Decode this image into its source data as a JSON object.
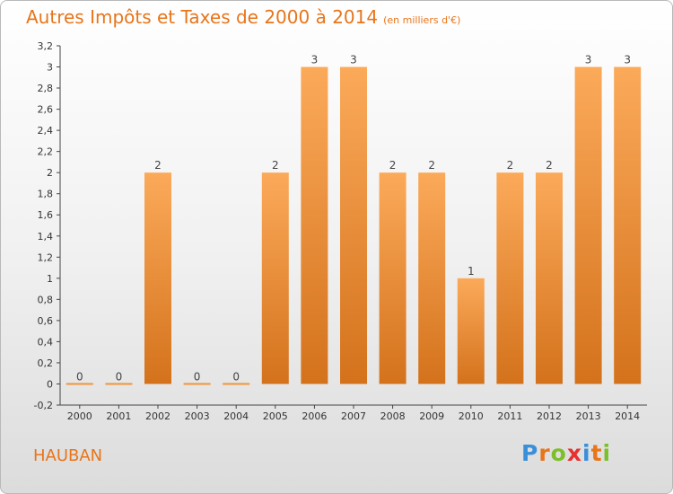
{
  "title": "Autres Impôts et Taxes de 2000 à 2014",
  "unit": "(en milliers d'€)",
  "commune": "HAUBAN",
  "logo": {
    "letters": [
      {
        "char": "P",
        "color": "#3a8fd9"
      },
      {
        "char": "r",
        "color": "#e8751a"
      },
      {
        "char": "o",
        "color": "#7cbf2a"
      },
      {
        "char": "x",
        "color": "#e83030"
      },
      {
        "char": "i",
        "color": "#3a8fd9"
      },
      {
        "char": "t",
        "color": "#e8751a"
      },
      {
        "char": "i",
        "color": "#7cbf2a"
      }
    ]
  },
  "chart_data": {
    "type": "bar",
    "title": "Autres Impôts et Taxes de 2000 à 2014",
    "categories": [
      "2000",
      "2001",
      "2002",
      "2003",
      "2004",
      "2005",
      "2006",
      "2007",
      "2008",
      "2009",
      "2010",
      "2011",
      "2012",
      "2013",
      "2014"
    ],
    "values": [
      0,
      0,
      2,
      0,
      0,
      2,
      3,
      3,
      2,
      2,
      1,
      2,
      2,
      3,
      3
    ],
    "data_labels": [
      "0",
      "0",
      "2",
      "0",
      "0",
      "2",
      "3",
      "3",
      "2",
      "2",
      "1",
      "2",
      "2",
      "3",
      "3"
    ],
    "ylim": [
      -0.2,
      3.2
    ],
    "yticks": [
      -0.2,
      0,
      0.2,
      0.4,
      0.6,
      0.8,
      1,
      1.2,
      1.4,
      1.6,
      1.8,
      2,
      2.2,
      2.4,
      2.6,
      2.8,
      3,
      3.2
    ],
    "ytick_labels": [
      "-0,2",
      "0",
      "0,2",
      "0,4",
      "0,6",
      "0,8",
      "1",
      "1,2",
      "1,4",
      "1,6",
      "1,8",
      "2",
      "2,2",
      "2,4",
      "2,6",
      "2,8",
      "3",
      "3,2"
    ],
    "bar_color": "#f0943a",
    "grid": false,
    "legend": "none"
  }
}
